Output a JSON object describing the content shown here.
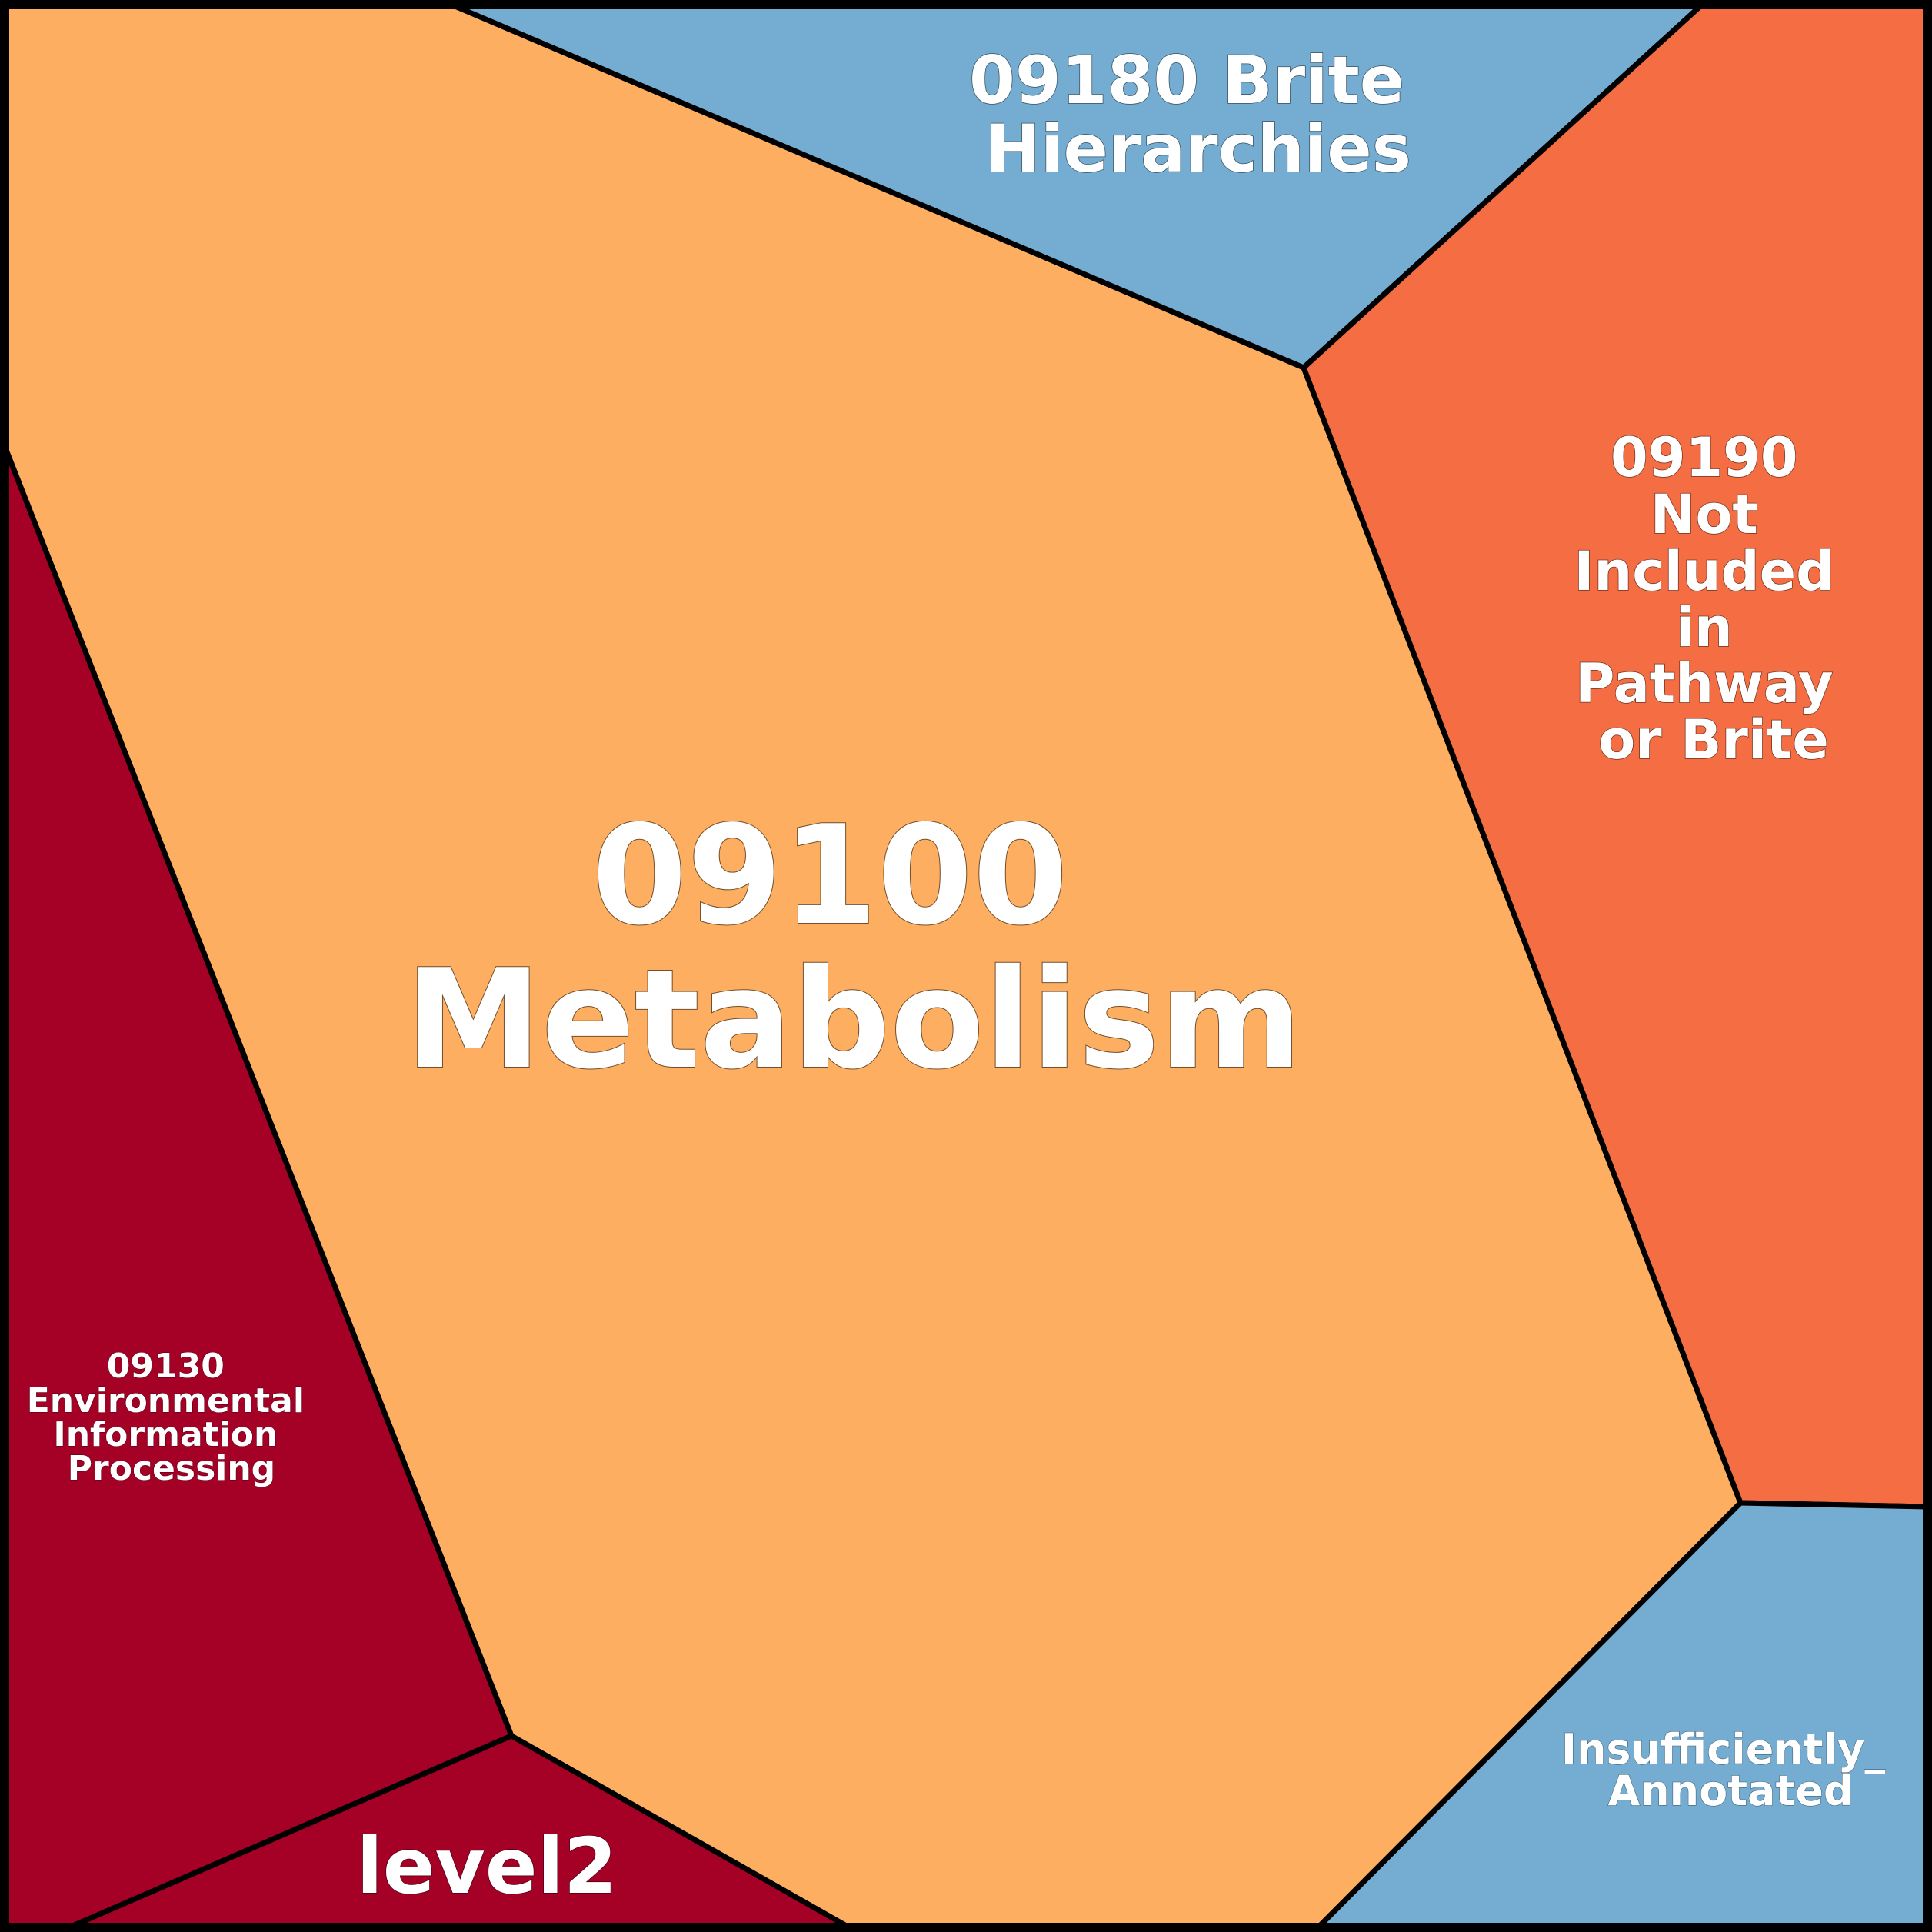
{
  "diagram": {
    "type": "voronoi-treemap",
    "cells": [
      {
        "id": "metabolism",
        "lines": [
          "09100",
          "Metabolism"
        ],
        "color": "#fdae61"
      },
      {
        "id": "brite",
        "lines": [
          "09180 Brite",
          "Hierarchies"
        ],
        "color": "#74add1"
      },
      {
        "id": "not-included",
        "lines": [
          "09190",
          "Not",
          "Included",
          "in",
          "Pathway",
          "or Brite"
        ],
        "color": "#f46d43"
      },
      {
        "id": "environmental",
        "lines": [
          "09130",
          "Environmental",
          "Information",
          "Processing"
        ],
        "color": "#a50026"
      },
      {
        "id": "level2",
        "lines": [
          "level2"
        ],
        "color": "#a50026"
      },
      {
        "id": "insufficiently",
        "lines": [
          "Insufficiently_",
          "Annotated"
        ],
        "color": "#74add1"
      }
    ]
  }
}
